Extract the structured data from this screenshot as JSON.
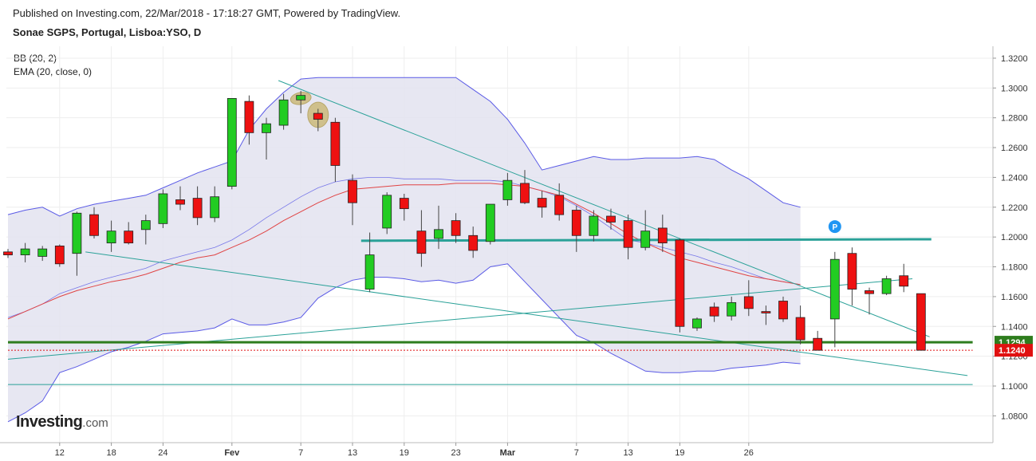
{
  "header": {
    "published": "Published on Investing.com, 22/Mar/2018 - 17:18:27 GMT, Powered by TradingView.",
    "symbol": "Sonae SGPS, Portugal, Lisboa:YSO, D"
  },
  "indicators": {
    "bb": "BB (20, 2)",
    "ema": "EMA (20, close, 0)"
  },
  "logo": {
    "brand": "Investing",
    "suffix": ".com"
  },
  "colors": {
    "up": "#22cc22",
    "down": "#ee1111",
    "band_fill": "#e3e3f0",
    "band_line": "#5a5ae6",
    "ema": "#e04444",
    "trend": "#2aa198",
    "support": "#2e7d1e",
    "last_price": "#e01010"
  },
  "chart_data": {
    "type": "candlestick",
    "y_axis": {
      "range": [
        1.062,
        1.328
      ],
      "ticks": [
        "1.0800",
        "1.1000",
        "1.1200",
        "1.1400",
        "1.1600",
        "1.1800",
        "1.2000",
        "1.2200",
        "1.2400",
        "1.2600",
        "1.2800",
        "1.3000",
        "1.3200"
      ]
    },
    "x_axis": {
      "labels": [
        "12",
        "18",
        "24",
        "Fev",
        "7",
        "13",
        "19",
        "23",
        "Mar",
        "7",
        "13",
        "19",
        "26"
      ],
      "label_index": [
        3,
        6,
        9,
        13,
        17,
        20,
        23,
        26,
        29,
        33,
        36,
        39,
        43
      ]
    },
    "price_labels": [
      {
        "text": "1.1294",
        "value": 1.1294,
        "kind": "support"
      },
      {
        "text": "1.1240",
        "value": 1.124,
        "kind": "last"
      }
    ],
    "candles": [
      [
        1.19,
        1.192,
        1.186,
        1.188
      ],
      [
        1.188,
        1.196,
        1.183,
        1.192
      ],
      [
        1.187,
        1.194,
        1.184,
        1.192
      ],
      [
        1.194,
        1.195,
        1.18,
        1.182
      ],
      [
        1.189,
        1.217,
        1.174,
        1.216
      ],
      [
        1.215,
        1.22,
        1.199,
        1.201
      ],
      [
        1.196,
        1.211,
        1.19,
        1.204
      ],
      [
        1.204,
        1.21,
        1.195,
        1.196
      ],
      [
        1.205,
        1.215,
        1.195,
        1.211
      ],
      [
        1.209,
        1.232,
        1.206,
        1.229
      ],
      [
        1.225,
        1.234,
        1.218,
        1.222
      ],
      [
        1.226,
        1.234,
        1.208,
        1.213
      ],
      [
        1.213,
        1.234,
        1.21,
        1.227
      ],
      [
        1.234,
        1.293,
        1.232,
        1.293
      ],
      [
        1.291,
        1.295,
        1.262,
        1.27
      ],
      [
        1.27,
        1.28,
        1.252,
        1.276
      ],
      [
        1.275,
        1.296,
        1.272,
        1.292
      ],
      [
        1.292,
        1.298,
        1.283,
        1.295
      ],
      [
        1.283,
        1.286,
        1.271,
        1.279
      ],
      [
        1.277,
        1.28,
        1.237,
        1.248
      ],
      [
        1.238,
        1.242,
        1.208,
        1.223
      ],
      [
        1.165,
        1.203,
        1.163,
        1.188
      ],
      [
        1.206,
        1.23,
        1.202,
        1.228
      ],
      [
        1.226,
        1.229,
        1.211,
        1.219
      ],
      [
        1.204,
        1.218,
        1.18,
        1.189
      ],
      [
        1.199,
        1.221,
        1.192,
        1.205
      ],
      [
        1.211,
        1.216,
        1.196,
        1.201
      ],
      [
        1.201,
        1.207,
        1.186,
        1.191
      ],
      [
        1.197,
        1.222,
        1.195,
        1.222
      ],
      [
        1.225,
        1.243,
        1.221,
        1.238
      ],
      [
        1.236,
        1.245,
        1.222,
        1.223
      ],
      [
        1.226,
        1.231,
        1.213,
        1.22
      ],
      [
        1.228,
        1.236,
        1.211,
        1.215
      ],
      [
        1.218,
        1.221,
        1.19,
        1.201
      ],
      [
        1.201,
        1.218,
        1.197,
        1.214
      ],
      [
        1.214,
        1.219,
        1.205,
        1.21
      ],
      [
        1.211,
        1.215,
        1.185,
        1.193
      ],
      [
        1.193,
        1.218,
        1.191,
        1.204
      ],
      [
        1.206,
        1.215,
        1.19,
        1.196
      ],
      [
        1.198,
        1.199,
        1.136,
        1.14
      ],
      [
        1.139,
        1.146,
        1.137,
        1.145
      ],
      [
        1.153,
        1.156,
        1.143,
        1.147
      ],
      [
        1.147,
        1.16,
        1.144,
        1.156
      ],
      [
        1.16,
        1.171,
        1.147,
        1.152
      ],
      [
        1.15,
        1.154,
        1.141,
        1.149
      ],
      [
        1.157,
        1.16,
        1.143,
        1.145
      ],
      [
        1.146,
        1.154,
        1.128,
        1.131
      ],
      [
        1.132,
        1.137,
        1.124,
        1.124
      ],
      [
        1.145,
        1.19,
        1.126,
        1.185
      ],
      [
        1.189,
        1.193,
        1.154,
        1.165
      ],
      [
        1.164,
        1.166,
        1.148,
        1.162
      ],
      [
        1.162,
        1.174,
        1.161,
        1.172
      ],
      [
        1.174,
        1.182,
        1.163,
        1.167
      ],
      [
        1.162,
        1.162,
        1.124,
        1.124
      ]
    ],
    "bollinger_upper": [
      1.215,
      1.218,
      1.22,
      1.214,
      1.219,
      1.222,
      1.224,
      1.226,
      1.228,
      1.233,
      1.238,
      1.243,
      1.247,
      1.251,
      1.272,
      1.286,
      1.297,
      1.306,
      1.307,
      1.307,
      1.307,
      1.307,
      1.307,
      1.307,
      1.307,
      1.307,
      1.307,
      1.299,
      1.291,
      1.279,
      1.263,
      1.245,
      1.248,
      1.251,
      1.254,
      1.252,
      1.252,
      1.253,
      1.253,
      1.253,
      1.254,
      1.252,
      1.245,
      1.239,
      1.231,
      1.223,
      1.22
    ],
    "bollinger_middle": [
      1.146,
      1.15,
      1.155,
      1.162,
      1.166,
      1.17,
      1.173,
      1.176,
      1.179,
      1.184,
      1.187,
      1.19,
      1.193,
      1.198,
      1.205,
      1.213,
      1.22,
      1.227,
      1.233,
      1.237,
      1.239,
      1.24,
      1.24,
      1.239,
      1.239,
      1.239,
      1.238,
      1.238,
      1.238,
      1.237,
      1.234,
      1.231,
      1.227,
      1.221,
      1.214,
      1.206,
      1.198,
      1.196,
      1.193,
      1.19,
      1.187,
      1.183,
      1.18,
      1.176,
      1.172,
      1.17,
      1.168
    ],
    "bollinger_lower": [
      1.076,
      1.082,
      1.09,
      1.109,
      1.113,
      1.118,
      1.123,
      1.126,
      1.13,
      1.135,
      1.136,
      1.137,
      1.139,
      1.145,
      1.141,
      1.141,
      1.143,
      1.146,
      1.159,
      1.166,
      1.171,
      1.173,
      1.173,
      1.172,
      1.17,
      1.171,
      1.169,
      1.171,
      1.18,
      1.182,
      1.17,
      1.158,
      1.146,
      1.134,
      1.129,
      1.122,
      1.116,
      1.11,
      1.109,
      1.109,
      1.11,
      1.11,
      1.112,
      1.113,
      1.114,
      1.116,
      1.115
    ],
    "ema": [
      1.145,
      1.15,
      1.155,
      1.16,
      1.164,
      1.167,
      1.17,
      1.172,
      1.175,
      1.179,
      1.183,
      1.186,
      1.188,
      1.193,
      1.198,
      1.204,
      1.211,
      1.217,
      1.223,
      1.228,
      1.232,
      1.233,
      1.234,
      1.235,
      1.235,
      1.235,
      1.236,
      1.236,
      1.236,
      1.235,
      1.234,
      1.231,
      1.228,
      1.222,
      1.216,
      1.209,
      1.202,
      1.196,
      1.191,
      1.186,
      1.183,
      1.18,
      1.177,
      1.174,
      1.172,
      1.17,
      1.168
    ],
    "trendlines": [
      {
        "from": [
          15.7,
          1.305
        ],
        "to": [
          53.5,
          1.133
        ]
      },
      {
        "from": [
          4.5,
          1.19
        ],
        "to": [
          55.7,
          1.107
        ]
      },
      {
        "from": [
          0,
          1.118
        ],
        "to": [
          52.5,
          1.172
        ]
      },
      {
        "from": [
          20.5,
          1.1975
        ],
        "to": [
          53.6,
          1.1985
        ]
      },
      {
        "from": [
          0,
          1.101
        ],
        "to": [
          56,
          1.101
        ]
      },
      {
        "from": [
          0,
          1.1294
        ],
        "to": [
          56,
          1.1294
        ]
      },
      {
        "from": [
          0,
          1.124
        ],
        "to": [
          56,
          1.124
        ]
      }
    ],
    "markers": [
      {
        "type": "pivot",
        "text": "P",
        "at": [
          48,
          1.207
        ]
      }
    ],
    "highlights": [
      {
        "at": [
          17,
          1.293
        ],
        "rx": 0.6,
        "ry": 0.004,
        "angle": -10
      },
      {
        "at": [
          18,
          1.282
        ],
        "rx": 0.6,
        "ry": 0.0085,
        "angle": 0
      }
    ]
  }
}
